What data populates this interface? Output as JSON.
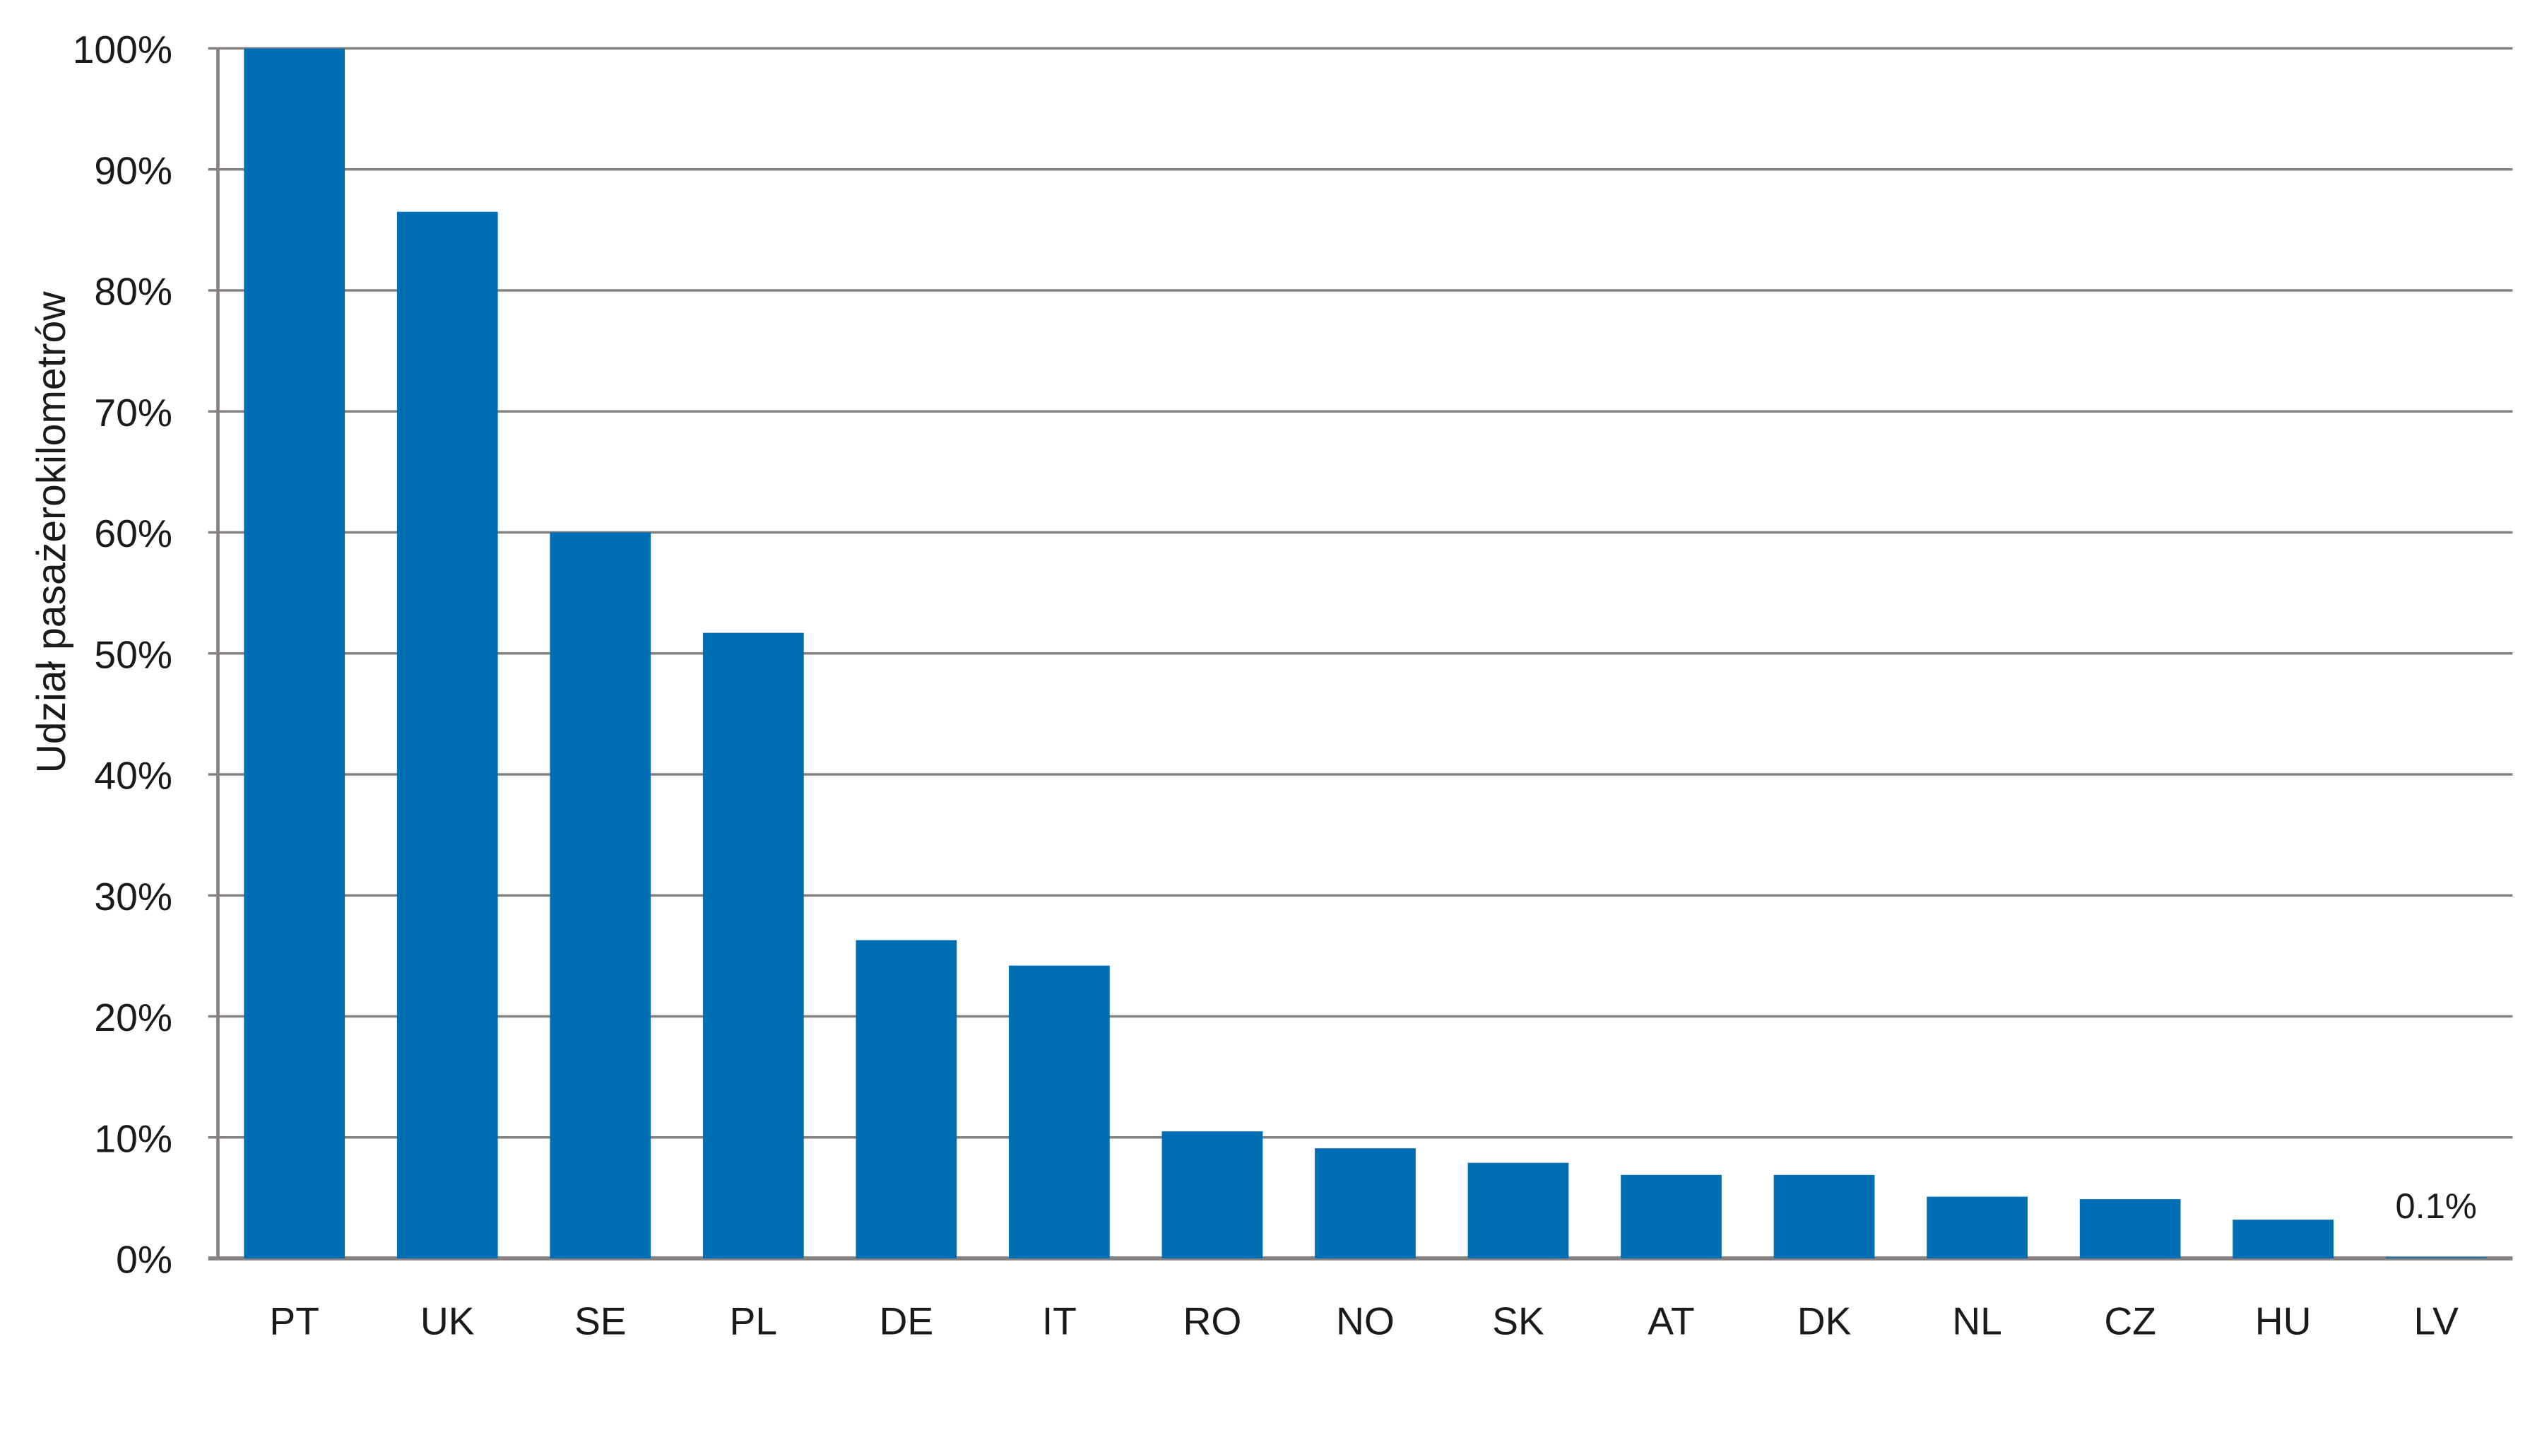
{
  "chart_data": {
    "type": "bar",
    "title": "",
    "xlabel": "",
    "ylabel": "Udział pasażerokilometrów",
    "categories": [
      "PT",
      "UK",
      "SE",
      "PL",
      "DE",
      "IT",
      "RO",
      "NO",
      "SK",
      "AT",
      "DK",
      "NL",
      "CZ",
      "HU",
      "LV"
    ],
    "values": [
      100,
      86.5,
      60,
      51.7,
      26.3,
      24.2,
      10.5,
      9.1,
      7.9,
      6.9,
      6.9,
      5.1,
      4.9,
      3.2,
      0.1
    ],
    "ylim": [
      0,
      100
    ],
    "yticks": [
      0,
      10,
      20,
      30,
      40,
      50,
      60,
      70,
      80,
      90,
      100
    ],
    "ytick_labels": [
      "0%",
      "10%",
      "20%",
      "30%",
      "40%",
      "50%",
      "60%",
      "70%",
      "80%",
      "90%",
      "100%"
    ],
    "annotations": [
      {
        "category": "LV",
        "text": "0.1%"
      }
    ],
    "grid": true,
    "bar_color": "#006eb4",
    "grid_color": "#868080"
  }
}
